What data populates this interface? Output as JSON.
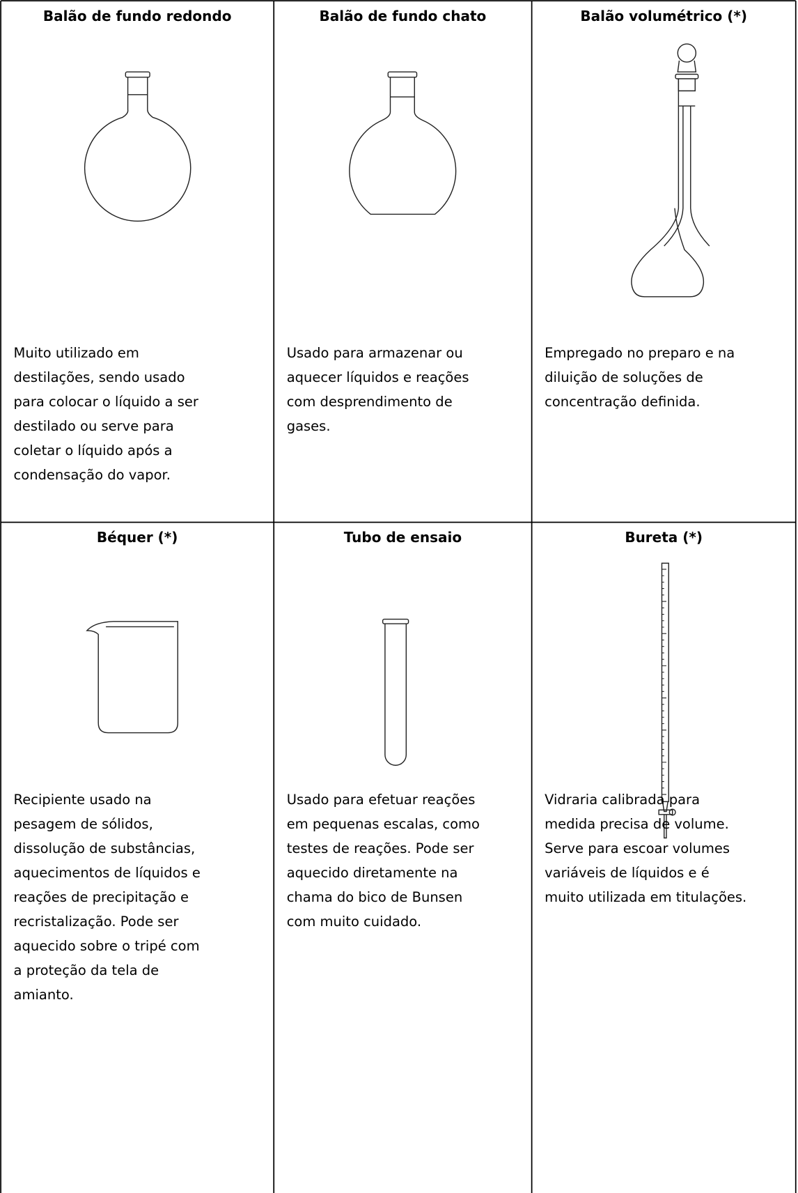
{
  "table": {
    "rows": [
      [
        {
          "title": "Balão de fundo redondo",
          "description": [
            "Muito utilizado em",
            "destilações, sendo usado",
            "para colocar o líquido a ser",
            "destilado ou serve para",
            "coletar o líquido após a",
            "condensação do vapor."
          ]
        },
        {
          "title": "Balão de fundo chato",
          "description": [
            "Usado para armazenar ou",
            "aquecer líquidos e reações",
            "com desprendimento de",
            "gases."
          ]
        },
        {
          "title": "Balão volumétrico (*)",
          "description": [
            "Empregado no preparo e na",
            "diluição de soluções de",
            "concentração definida."
          ]
        }
      ],
      [
        {
          "title": "Béquer (*)",
          "description": [
            "Recipiente usado na",
            "pesagem de sólidos,",
            "dissolução de substâncias,",
            "aquecimentos de líquidos e",
            "reações de precipitação e",
            "recristalização. Pode ser",
            "aquecido sobre o tripé com",
            "a proteção da tela de",
            "amianto."
          ]
        },
        {
          "title": "Tubo de ensaio",
          "description": [
            "Usado para efetuar reações",
            "em pequenas escalas, como",
            "testes de reações. Pode ser",
            "aquecido diretamente na",
            "chama do bico de Bunsen",
            "com muito cuidado."
          ]
        },
        {
          "title": "Bureta (*)",
          "description": [
            "Vidraria calibrada para",
            "medida precisa de volume.",
            "Serve para escoar volumes",
            "variáveis de líquidos e é",
            "muito utilizada em titulações."
          ]
        }
      ]
    ]
  }
}
